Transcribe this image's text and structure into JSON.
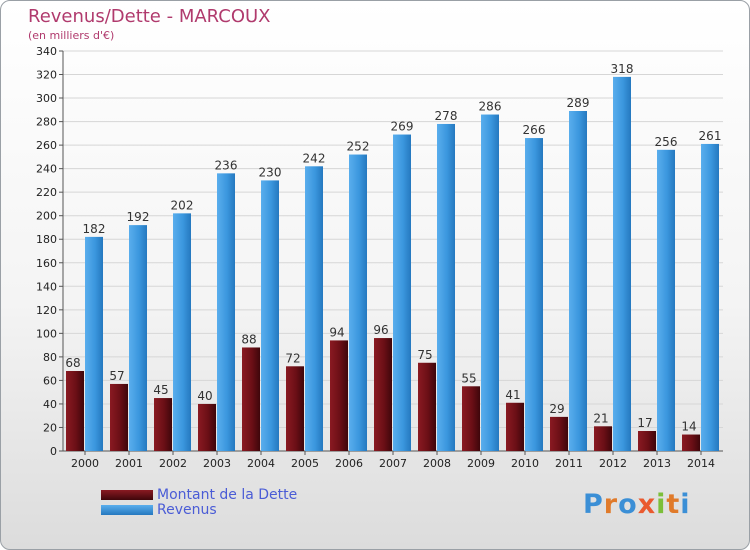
{
  "header": {
    "title": "Revenus/Dette - MARCOUX",
    "subtitle": "(en milliers d'€)"
  },
  "colors": {
    "dette": "#6b0f16",
    "revenus": "#3b97de",
    "title": "#b03a6d",
    "legend_text": "#4a5cd6"
  },
  "legend": {
    "dette_label": "Montant de la Dette",
    "revenus_label": "Revenus"
  },
  "logo": {
    "text": "Proxiti"
  },
  "chart_data": {
    "type": "bar",
    "title": "Revenus/Dette - MARCOUX",
    "subtitle": "(en milliers d'€)",
    "xlabel": "",
    "ylabel": "",
    "categories": [
      "2000",
      "2001",
      "2002",
      "2003",
      "2004",
      "2005",
      "2006",
      "2007",
      "2008",
      "2009",
      "2010",
      "2011",
      "2012",
      "2013",
      "2014"
    ],
    "series": [
      {
        "name": "Montant de la Dette",
        "values": [
          68,
          57,
          45,
          40,
          88,
          72,
          94,
          96,
          75,
          55,
          41,
          29,
          21,
          17,
          14
        ]
      },
      {
        "name": "Revenus",
        "values": [
          182,
          192,
          202,
          236,
          230,
          242,
          252,
          269,
          278,
          286,
          266,
          289,
          318,
          256,
          261
        ]
      }
    ],
    "ylim": [
      0,
      340
    ],
    "yticks": [
      0,
      20,
      40,
      60,
      80,
      100,
      120,
      140,
      160,
      180,
      200,
      220,
      240,
      260,
      280,
      300,
      320,
      340
    ],
    "grid": true,
    "legend_position": "bottom-left"
  }
}
